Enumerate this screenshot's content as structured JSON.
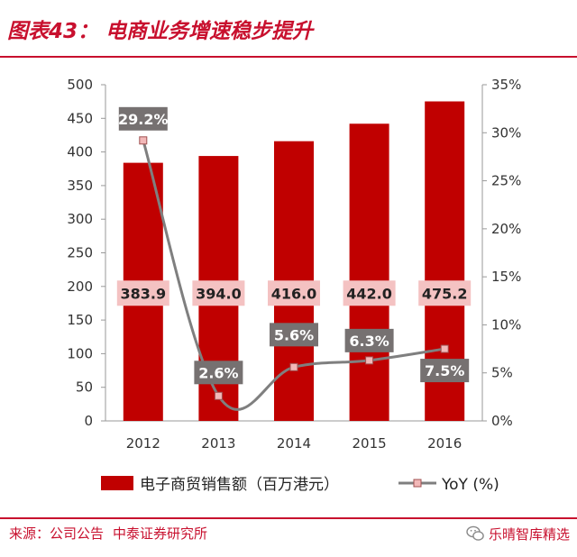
{
  "figure": {
    "title": "图表43： 电商业务增速稳步提升",
    "source_label": "来源：公司公告",
    "source_org": "中泰证券研究所",
    "watermark": "乐晴智库精选"
  },
  "colors": {
    "accent": "#c8102e",
    "bar": "#c00000",
    "line": "#7f7f7f",
    "marker": "#f2b8b8",
    "label_box": "#767171",
    "bar_label_box": "#f4c2c2"
  },
  "chart_data": {
    "type": "bar",
    "categories": [
      "2012",
      "2013",
      "2014",
      "2015",
      "2016"
    ],
    "series": [
      {
        "name": "电子商贸销售额（百万港元）",
        "type": "bar",
        "axis": "left",
        "values": [
          383.9,
          394.0,
          416.0,
          442.0,
          475.2
        ],
        "labels": [
          "383.9",
          "394.0",
          "416.0",
          "442.0",
          "475.2"
        ]
      },
      {
        "name": "YoY (%)",
        "type": "line",
        "axis": "right",
        "values": [
          29.2,
          2.6,
          5.6,
          6.3,
          7.5
        ],
        "labels": [
          "29.2%",
          "2.6%",
          "5.6%",
          "6.3%",
          "7.5%"
        ]
      }
    ],
    "y_left": {
      "min": 0,
      "max": 500,
      "step": 50,
      "ticks": [
        "0",
        "50",
        "100",
        "150",
        "200",
        "250",
        "300",
        "350",
        "400",
        "450",
        "500"
      ]
    },
    "y_right": {
      "min": 0,
      "max": 35,
      "step": 5,
      "ticks": [
        "0%",
        "5%",
        "10%",
        "15%",
        "20%",
        "25%",
        "30%",
        "35%"
      ]
    },
    "legend": {
      "position": "bottom-center",
      "bar_label": "电子商贸销售额（百万港元）",
      "line_label": "YoY (%)"
    }
  }
}
